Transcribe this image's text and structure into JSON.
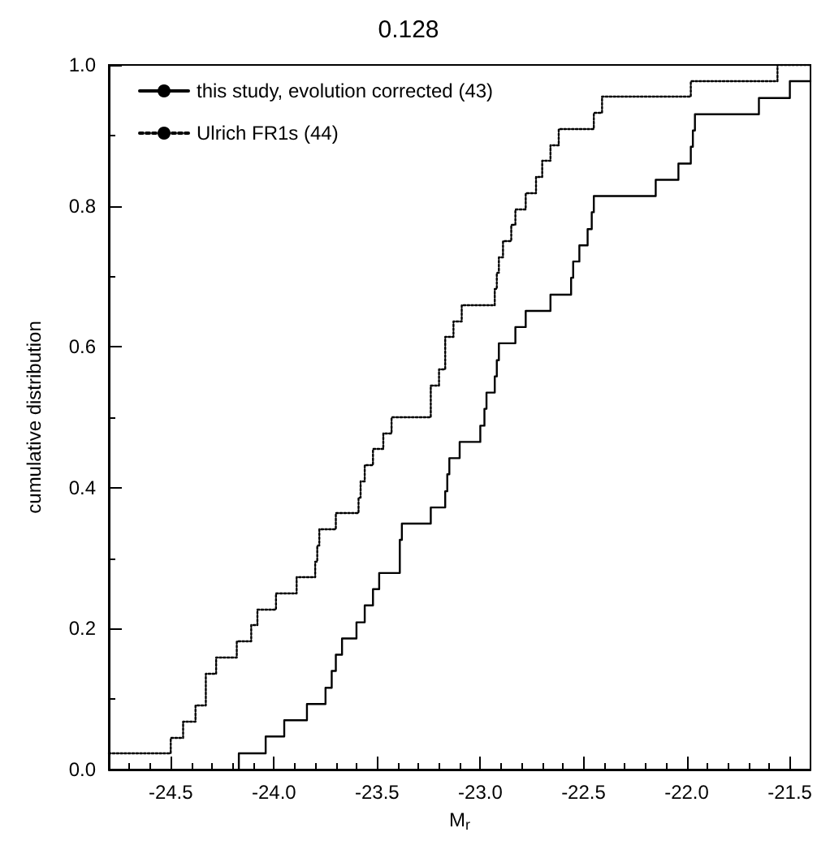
{
  "chart_data": {
    "type": "step",
    "title": "0.128",
    "xlabel": "M$_{r}$",
    "ylabel": "cumulative distribution",
    "xlim": [
      -24.8,
      -21.4
    ],
    "ylim": [
      0,
      1
    ],
    "xticks": [
      {
        "value": -24.5,
        "label": "-24.5"
      },
      {
        "value": -24,
        "label": "-24.0"
      },
      {
        "value": -23.5,
        "label": "-23.5"
      },
      {
        "value": -23,
        "label": "-23.0"
      },
      {
        "value": -22.5,
        "label": "-22.5"
      },
      {
        "value": -22,
        "label": "-22.0"
      },
      {
        "value": -21.5,
        "label": "-21.5"
      }
    ],
    "yticks": [
      {
        "value": 0,
        "label": "0.0"
      },
      {
        "value": 0.2,
        "label": "0.2"
      },
      {
        "value": 0.4,
        "label": "0.4"
      },
      {
        "value": 0.6,
        "label": "0.6"
      },
      {
        "value": 0.8,
        "label": "0.8"
      },
      {
        "value": 1,
        "label": "1.0"
      }
    ],
    "grid": false,
    "legend": "top left",
    "marker": "none",
    "series": [
      {
        "name": "this study, evolution corrected (43)",
        "color": "#000000",
        "line_style": "solid",
        "x": [
          -24.17,
          -24.17,
          -24.04,
          -23.95,
          -23.84,
          -23.75,
          -23.72,
          -23.7,
          -23.67,
          -23.6,
          -23.56,
          -23.52,
          -23.49,
          -23.39,
          -23.39,
          -23.38,
          -23.24,
          -23.17,
          -23.16,
          -23.15,
          -23.1,
          -23.0,
          -22.98,
          -22.97,
          -22.93,
          -22.92,
          -22.91,
          -22.83,
          -22.78,
          -22.66,
          -22.56,
          -22.55,
          -22.52,
          -22.48,
          -22.46,
          -22.45,
          -22.15,
          -22.04,
          -21.98,
          -21.97,
          -21.96,
          -21.65,
          -21.5,
          -21.4
        ],
        "values": [
          0,
          0.023,
          0.047,
          0.07,
          0.093,
          0.116,
          0.14,
          0.163,
          0.186,
          0.209,
          0.233,
          0.256,
          0.279,
          0.302,
          0.326,
          0.349,
          0.372,
          0.395,
          0.419,
          0.442,
          0.465,
          0.488,
          0.512,
          0.535,
          0.558,
          0.581,
          0.605,
          0.628,
          0.651,
          0.674,
          0.698,
          0.721,
          0.744,
          0.767,
          0.791,
          0.814,
          0.837,
          0.86,
          0.884,
          0.907,
          0.93,
          0.953,
          0.977,
          0.977
        ]
      },
      {
        "name": "Ulrich FR1s (44)",
        "color": "#000000",
        "line_style": "dotted",
        "x": [
          -24.8,
          -24.5,
          -24.44,
          -24.38,
          -24.33,
          -24.33,
          -24.28,
          -24.18,
          -24.11,
          -24.08,
          -23.99,
          -23.89,
          -23.8,
          -23.79,
          -23.78,
          -23.7,
          -23.59,
          -23.58,
          -23.56,
          -23.52,
          -23.47,
          -23.43,
          -23.24,
          -23.24,
          -23.2,
          -23.17,
          -23.17,
          -23.13,
          -23.09,
          -22.93,
          -22.92,
          -22.91,
          -22.89,
          -22.85,
          -22.83,
          -22.78,
          -22.73,
          -22.7,
          -22.66,
          -22.62,
          -22.45,
          -22.41,
          -21.98,
          -21.56,
          -21.4
        ],
        "values": [
          0.023,
          0.045,
          0.068,
          0.091,
          0.114,
          0.136,
          0.159,
          0.182,
          0.205,
          0.227,
          0.25,
          0.273,
          0.295,
          0.318,
          0.341,
          0.364,
          0.386,
          0.409,
          0.432,
          0.455,
          0.477,
          0.5,
          0.523,
          0.545,
          0.568,
          0.591,
          0.614,
          0.636,
          0.659,
          0.682,
          0.705,
          0.727,
          0.75,
          0.773,
          0.795,
          0.818,
          0.841,
          0.864,
          0.886,
          0.909,
          0.932,
          0.955,
          0.977,
          1.0,
          1.0
        ]
      }
    ]
  }
}
